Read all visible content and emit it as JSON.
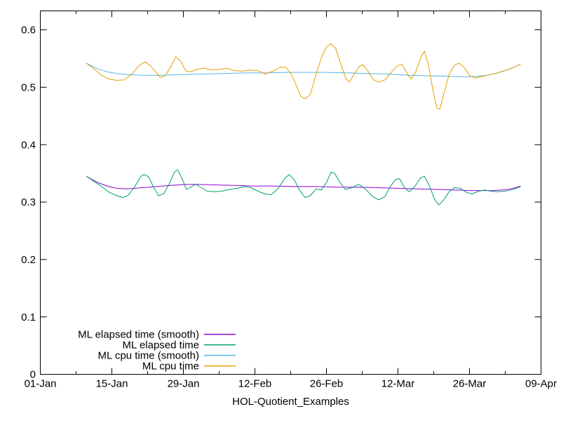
{
  "figure": {
    "background": "#ffffff",
    "border_color": "#000000",
    "text_color": "#000000"
  },
  "chart_data": {
    "type": "line",
    "title": "",
    "xlabel": "HOL-Quotient_Examples",
    "ylabel": "",
    "grid": false,
    "legend": {
      "position": "inside bottom-left"
    },
    "x_axis": {
      "unit": "days since 01-Jan",
      "range_days": [
        0,
        98
      ],
      "major_ticks": [
        {
          "day": 0,
          "label": "01-Jan"
        },
        {
          "day": 14,
          "label": "15-Jan"
        },
        {
          "day": 28,
          "label": "29-Jan"
        },
        {
          "day": 42,
          "label": "12-Feb"
        },
        {
          "day": 56,
          "label": "26-Feb"
        },
        {
          "day": 70,
          "label": "12-Mar"
        },
        {
          "day": 84,
          "label": "26-Mar"
        },
        {
          "day": 98,
          "label": "09-Apr"
        }
      ],
      "minor_tick_days": [
        7,
        21,
        35,
        49,
        63,
        77,
        91
      ]
    },
    "y_axis": {
      "range": [
        0,
        0.633
      ],
      "major_ticks": [
        {
          "value": 0.0,
          "label": "0"
        },
        {
          "value": 0.1,
          "label": "0.1"
        },
        {
          "value": 0.2,
          "label": "0.2"
        },
        {
          "value": 0.3,
          "label": "0.3"
        },
        {
          "value": 0.4,
          "label": "0.4"
        },
        {
          "value": 0.5,
          "label": "0.5"
        },
        {
          "value": 0.6,
          "label": "0.6"
        }
      ]
    },
    "series": [
      {
        "name": "ML elapsed time (smooth)",
        "color": "#9400d3",
        "points": [
          [
            9,
            0.345
          ],
          [
            11,
            0.335
          ],
          [
            13,
            0.328
          ],
          [
            15,
            0.324
          ],
          [
            17,
            0.323
          ],
          [
            20,
            0.325
          ],
          [
            24,
            0.328
          ],
          [
            27,
            0.33
          ],
          [
            30,
            0.331
          ],
          [
            34,
            0.33
          ],
          [
            38,
            0.329
          ],
          [
            42,
            0.328
          ],
          [
            46,
            0.328
          ],
          [
            50,
            0.327
          ],
          [
            54,
            0.327
          ],
          [
            58,
            0.326
          ],
          [
            62,
            0.326
          ],
          [
            66,
            0.325
          ],
          [
            70,
            0.324
          ],
          [
            74,
            0.323
          ],
          [
            78,
            0.322
          ],
          [
            81,
            0.321
          ],
          [
            84,
            0.32
          ],
          [
            86.5,
            0.32
          ],
          [
            88.5,
            0.32
          ],
          [
            90.5,
            0.321
          ],
          [
            92,
            0.323
          ],
          [
            93,
            0.325
          ],
          [
            94,
            0.328
          ]
        ]
      },
      {
        "name": "ML elapsed time",
        "color": "#009e73",
        "points": [
          [
            9,
            0.345
          ],
          [
            10.5,
            0.336
          ],
          [
            12,
            0.327
          ],
          [
            13.5,
            0.317
          ],
          [
            15,
            0.311
          ],
          [
            16.2,
            0.308
          ],
          [
            17.2,
            0.312
          ],
          [
            18.5,
            0.327
          ],
          [
            19.7,
            0.345
          ],
          [
            20.3,
            0.348
          ],
          [
            21.2,
            0.344
          ],
          [
            22.2,
            0.325
          ],
          [
            23.2,
            0.311
          ],
          [
            24.2,
            0.315
          ],
          [
            25.3,
            0.333
          ],
          [
            26.3,
            0.353
          ],
          [
            26.9,
            0.356
          ],
          [
            27.8,
            0.34
          ],
          [
            28.6,
            0.322
          ],
          [
            29.6,
            0.327
          ],
          [
            30.4,
            0.331
          ],
          [
            31.5,
            0.325
          ],
          [
            32.7,
            0.319
          ],
          [
            34,
            0.318
          ],
          [
            35.5,
            0.319
          ],
          [
            37,
            0.322
          ],
          [
            38.5,
            0.324
          ],
          [
            40,
            0.327
          ],
          [
            41.3,
            0.325
          ],
          [
            42.6,
            0.319
          ],
          [
            44,
            0.314
          ],
          [
            45.2,
            0.313
          ],
          [
            46.5,
            0.323
          ],
          [
            47.8,
            0.341
          ],
          [
            48.7,
            0.348
          ],
          [
            49.7,
            0.339
          ],
          [
            50.8,
            0.32
          ],
          [
            51.8,
            0.308
          ],
          [
            52.8,
            0.311
          ],
          [
            54,
            0.323
          ],
          [
            55,
            0.321
          ],
          [
            56,
            0.334
          ],
          [
            56.9,
            0.352
          ],
          [
            57.6,
            0.35
          ],
          [
            58.6,
            0.335
          ],
          [
            59.7,
            0.322
          ],
          [
            61,
            0.325
          ],
          [
            62.3,
            0.331
          ],
          [
            63.6,
            0.323
          ],
          [
            65,
            0.31
          ],
          [
            66.2,
            0.304
          ],
          [
            67.4,
            0.309
          ],
          [
            68.5,
            0.327
          ],
          [
            69.5,
            0.339
          ],
          [
            70.3,
            0.341
          ],
          [
            71.3,
            0.325
          ],
          [
            72.2,
            0.318
          ],
          [
            73.3,
            0.327
          ],
          [
            74.4,
            0.342
          ],
          [
            75.2,
            0.345
          ],
          [
            76.2,
            0.327
          ],
          [
            77.2,
            0.304
          ],
          [
            78,
            0.295
          ],
          [
            78.9,
            0.303
          ],
          [
            80,
            0.318
          ],
          [
            81,
            0.325
          ],
          [
            82.2,
            0.324
          ],
          [
            83.4,
            0.317
          ],
          [
            84.5,
            0.314
          ],
          [
            85.8,
            0.319
          ],
          [
            87,
            0.321
          ],
          [
            88.2,
            0.319
          ],
          [
            89.5,
            0.318
          ],
          [
            91,
            0.319
          ],
          [
            92.5,
            0.322
          ],
          [
            94,
            0.327
          ]
        ]
      },
      {
        "name": "ML cpu time (smooth)",
        "color": "#56b4e9",
        "points": [
          [
            9,
            0.542
          ],
          [
            11,
            0.533
          ],
          [
            13,
            0.527
          ],
          [
            15,
            0.524
          ],
          [
            17,
            0.522
          ],
          [
            20,
            0.521
          ],
          [
            24,
            0.521
          ],
          [
            28,
            0.522
          ],
          [
            32,
            0.523
          ],
          [
            36,
            0.524
          ],
          [
            40,
            0.525
          ],
          [
            44,
            0.525
          ],
          [
            48,
            0.526
          ],
          [
            52,
            0.526
          ],
          [
            56,
            0.526
          ],
          [
            60,
            0.525
          ],
          [
            64,
            0.524
          ],
          [
            68,
            0.523
          ],
          [
            72,
            0.521
          ],
          [
            76,
            0.52
          ],
          [
            80,
            0.519
          ],
          [
            83,
            0.518
          ],
          [
            85.5,
            0.519
          ],
          [
            87.5,
            0.521
          ],
          [
            89.5,
            0.525
          ],
          [
            91,
            0.529
          ],
          [
            92.5,
            0.534
          ],
          [
            94,
            0.54
          ]
        ]
      },
      {
        "name": "ML cpu time",
        "color": "#e69f00",
        "points": [
          [
            9,
            0.542
          ],
          [
            10.5,
            0.532
          ],
          [
            12,
            0.521
          ],
          [
            13.5,
            0.514
          ],
          [
            15,
            0.512
          ],
          [
            16.5,
            0.513
          ],
          [
            18,
            0.524
          ],
          [
            19.5,
            0.539
          ],
          [
            20.5,
            0.544
          ],
          [
            21.5,
            0.538
          ],
          [
            22.5,
            0.528
          ],
          [
            23.5,
            0.517
          ],
          [
            24.5,
            0.521
          ],
          [
            25.5,
            0.535
          ],
          [
            26.5,
            0.553
          ],
          [
            27.5,
            0.545
          ],
          [
            28.5,
            0.528
          ],
          [
            29.5,
            0.527
          ],
          [
            30.5,
            0.531
          ],
          [
            32,
            0.533
          ],
          [
            33.5,
            0.53
          ],
          [
            35,
            0.531
          ],
          [
            36.5,
            0.533
          ],
          [
            38,
            0.529
          ],
          [
            39.5,
            0.528
          ],
          [
            41,
            0.53
          ],
          [
            42.5,
            0.529
          ],
          [
            44,
            0.523
          ],
          [
            45.5,
            0.528
          ],
          [
            47,
            0.535
          ],
          [
            48,
            0.535
          ],
          [
            49,
            0.525
          ],
          [
            50,
            0.505
          ],
          [
            51,
            0.484
          ],
          [
            51.8,
            0.48
          ],
          [
            52.8,
            0.487
          ],
          [
            54,
            0.523
          ],
          [
            55,
            0.551
          ],
          [
            56,
            0.57
          ],
          [
            56.8,
            0.576
          ],
          [
            57.8,
            0.568
          ],
          [
            58.8,
            0.541
          ],
          [
            59.8,
            0.515
          ],
          [
            60.5,
            0.509
          ],
          [
            61.5,
            0.524
          ],
          [
            62.5,
            0.537
          ],
          [
            63.2,
            0.539
          ],
          [
            64.2,
            0.527
          ],
          [
            65.2,
            0.513
          ],
          [
            66.2,
            0.509
          ],
          [
            67.5,
            0.513
          ],
          [
            68.8,
            0.527
          ],
          [
            70,
            0.538
          ],
          [
            70.8,
            0.54
          ],
          [
            71.8,
            0.524
          ],
          [
            72.6,
            0.514
          ],
          [
            73.5,
            0.527
          ],
          [
            74.5,
            0.553
          ],
          [
            75.2,
            0.563
          ],
          [
            76,
            0.537
          ],
          [
            76.8,
            0.497
          ],
          [
            77.6,
            0.464
          ],
          [
            78.2,
            0.462
          ],
          [
            79,
            0.489
          ],
          [
            80,
            0.522
          ],
          [
            81,
            0.538
          ],
          [
            82,
            0.542
          ],
          [
            83,
            0.534
          ],
          [
            84,
            0.521
          ],
          [
            85,
            0.516
          ],
          [
            86.2,
            0.518
          ],
          [
            87.5,
            0.521
          ],
          [
            89,
            0.524
          ],
          [
            90.5,
            0.528
          ],
          [
            92,
            0.532
          ],
          [
            93,
            0.536
          ],
          [
            94,
            0.54
          ]
        ]
      }
    ]
  }
}
